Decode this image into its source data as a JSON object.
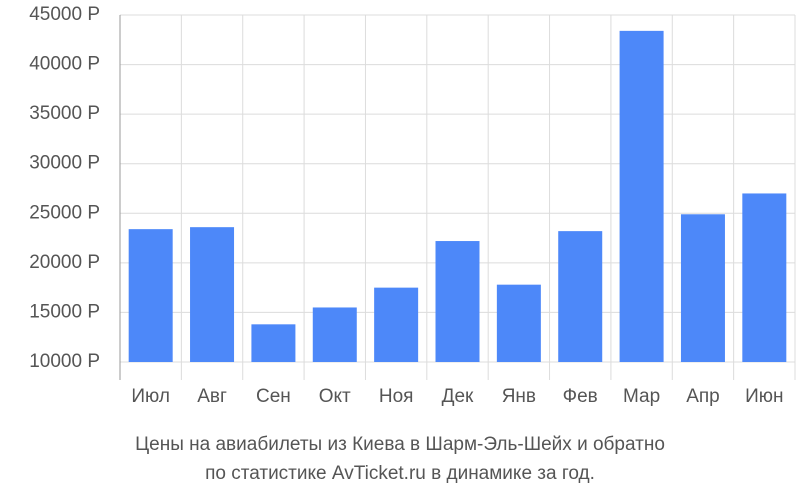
{
  "chart_data": {
    "type": "bar",
    "title": [
      "Цены на авиабилеты из Киева в Шарм-Эль-Шейх и обратно",
      "по статистике AvTicket.ru в динамике за год."
    ],
    "categories": [
      "Июл",
      "Авг",
      "Сен",
      "Окт",
      "Ноя",
      "Дек",
      "Янв",
      "Фев",
      "Мар",
      "Апр",
      "Июн"
    ],
    "values": [
      23400,
      23600,
      13800,
      15500,
      17500,
      22200,
      17800,
      23200,
      43400,
      24900,
      27000
    ],
    "color": "#4d88f9",
    "ylim": [
      10000,
      45000
    ],
    "yticks": [
      {
        "value": 10000,
        "label": "10000 Р"
      },
      {
        "value": 15000,
        "label": "15000 Р"
      },
      {
        "value": 20000,
        "label": "20000 Р"
      },
      {
        "value": 25000,
        "label": "25000 Р"
      },
      {
        "value": 30000,
        "label": "30000 Р"
      },
      {
        "value": 35000,
        "label": "35000 Р"
      },
      {
        "value": 40000,
        "label": "40000 Р"
      },
      {
        "value": 45000,
        "label": "45000 Р"
      }
    ],
    "grid": true
  }
}
